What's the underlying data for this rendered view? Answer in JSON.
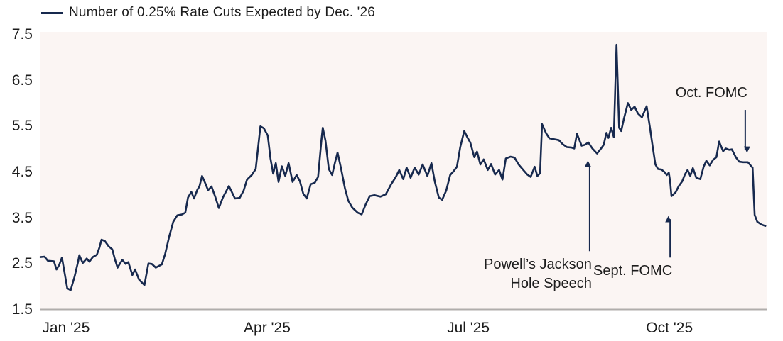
{
  "legend": {
    "label": "Number of 0.25% Rate Cuts Expected by Dec. '26"
  },
  "colors": {
    "line": "#17294e",
    "annotation_arrow": "#17294e",
    "plot_background": "#fbf5f3",
    "axis_line": "#b0adab",
    "text": "#1c1c1c"
  },
  "chart_data": {
    "type": "line",
    "title": "Number of 0.25% Rate Cuts Expected by Dec. '26",
    "xlabel": "",
    "ylabel": "",
    "grid": false,
    "legend_position": "top-left",
    "y_axis": {
      "range": [
        1.5,
        7.5
      ],
      "ticks": [
        7.5,
        6.5,
        5.5,
        4.5,
        3.5,
        2.5,
        1.5
      ],
      "tick_labels": [
        "7.5",
        "6.5",
        "5.5",
        "4.5",
        "3.5",
        "2.5",
        "1.5"
      ]
    },
    "x_axis": {
      "domain_months": [
        -0.38,
        10.46
      ],
      "tick_months": [
        0,
        3,
        6,
        9
      ],
      "tick_labels": [
        "Jan '25",
        "Apr '25",
        "Jul '25",
        "Oct '25"
      ]
    },
    "series": [
      {
        "name": "Number of 0.25% Rate Cuts Expected by Dec. '26",
        "points": [
          [
            -0.38,
            2.65
          ],
          [
            -0.32,
            2.66
          ],
          [
            -0.27,
            2.57
          ],
          [
            -0.18,
            2.56
          ],
          [
            -0.14,
            2.38
          ],
          [
            -0.1,
            2.48
          ],
          [
            -0.06,
            2.64
          ],
          [
            -0.02,
            2.3
          ],
          [
            0.02,
            1.97
          ],
          [
            0.07,
            1.93
          ],
          [
            0.13,
            2.23
          ],
          [
            0.18,
            2.54
          ],
          [
            0.2,
            2.69
          ],
          [
            0.25,
            2.52
          ],
          [
            0.31,
            2.62
          ],
          [
            0.35,
            2.55
          ],
          [
            0.4,
            2.65
          ],
          [
            0.46,
            2.7
          ],
          [
            0.5,
            2.86
          ],
          [
            0.53,
            3.03
          ],
          [
            0.58,
            3.0
          ],
          [
            0.64,
            2.88
          ],
          [
            0.69,
            2.82
          ],
          [
            0.73,
            2.6
          ],
          [
            0.77,
            2.42
          ],
          [
            0.84,
            2.59
          ],
          [
            0.89,
            2.5
          ],
          [
            0.93,
            2.54
          ],
          [
            0.99,
            2.26
          ],
          [
            1.03,
            2.38
          ],
          [
            1.09,
            2.16
          ],
          [
            1.17,
            2.04
          ],
          [
            1.23,
            2.51
          ],
          [
            1.28,
            2.5
          ],
          [
            1.34,
            2.42
          ],
          [
            1.39,
            2.46
          ],
          [
            1.43,
            2.49
          ],
          [
            1.48,
            2.72
          ],
          [
            1.54,
            3.1
          ],
          [
            1.6,
            3.42
          ],
          [
            1.66,
            3.56
          ],
          [
            1.73,
            3.58
          ],
          [
            1.78,
            3.62
          ],
          [
            1.82,
            3.95
          ],
          [
            1.87,
            4.07
          ],
          [
            1.91,
            3.93
          ],
          [
            1.96,
            4.12
          ],
          [
            1.99,
            4.19
          ],
          [
            2.03,
            4.42
          ],
          [
            2.08,
            4.25
          ],
          [
            2.12,
            4.11
          ],
          [
            2.17,
            4.19
          ],
          [
            2.23,
            3.95
          ],
          [
            2.28,
            3.72
          ],
          [
            2.34,
            3.95
          ],
          [
            2.43,
            4.2
          ],
          [
            2.48,
            4.05
          ],
          [
            2.52,
            3.93
          ],
          [
            2.59,
            3.94
          ],
          [
            2.65,
            4.1
          ],
          [
            2.7,
            4.34
          ],
          [
            2.77,
            4.44
          ],
          [
            2.83,
            4.57
          ],
          [
            2.87,
            5.1
          ],
          [
            2.9,
            5.5
          ],
          [
            2.95,
            5.46
          ],
          [
            3.01,
            5.3
          ],
          [
            3.05,
            4.8
          ],
          [
            3.09,
            4.47
          ],
          [
            3.13,
            4.7
          ],
          [
            3.17,
            4.29
          ],
          [
            3.22,
            4.63
          ],
          [
            3.27,
            4.42
          ],
          [
            3.32,
            4.7
          ],
          [
            3.38,
            4.29
          ],
          [
            3.44,
            4.44
          ],
          [
            3.49,
            4.3
          ],
          [
            3.54,
            4.03
          ],
          [
            3.59,
            3.93
          ],
          [
            3.65,
            4.24
          ],
          [
            3.71,
            4.27
          ],
          [
            3.76,
            4.4
          ],
          [
            3.81,
            5.2
          ],
          [
            3.83,
            5.47
          ],
          [
            3.87,
            5.19
          ],
          [
            3.92,
            4.57
          ],
          [
            3.97,
            4.44
          ],
          [
            4.01,
            4.7
          ],
          [
            4.05,
            4.93
          ],
          [
            4.1,
            4.6
          ],
          [
            4.16,
            4.15
          ],
          [
            4.21,
            3.88
          ],
          [
            4.27,
            3.73
          ],
          [
            4.35,
            3.62
          ],
          [
            4.41,
            3.58
          ],
          [
            4.47,
            3.8
          ],
          [
            4.53,
            3.98
          ],
          [
            4.6,
            4.0
          ],
          [
            4.69,
            3.97
          ],
          [
            4.77,
            4.02
          ],
          [
            4.85,
            4.24
          ],
          [
            4.92,
            4.4
          ],
          [
            4.97,
            4.55
          ],
          [
            5.03,
            4.35
          ],
          [
            5.08,
            4.6
          ],
          [
            5.14,
            4.38
          ],
          [
            5.2,
            4.6
          ],
          [
            5.26,
            4.45
          ],
          [
            5.32,
            4.67
          ],
          [
            5.39,
            4.42
          ],
          [
            5.45,
            4.7
          ],
          [
            5.5,
            4.3
          ],
          [
            5.56,
            3.95
          ],
          [
            5.61,
            3.9
          ],
          [
            5.67,
            4.1
          ],
          [
            5.73,
            4.44
          ],
          [
            5.78,
            4.52
          ],
          [
            5.83,
            4.62
          ],
          [
            5.88,
            5.05
          ],
          [
            5.94,
            5.4
          ],
          [
            5.99,
            5.25
          ],
          [
            6.03,
            5.15
          ],
          [
            6.09,
            4.83
          ],
          [
            6.13,
            4.95
          ],
          [
            6.18,
            4.67
          ],
          [
            6.23,
            4.78
          ],
          [
            6.29,
            4.55
          ],
          [
            6.34,
            4.68
          ],
          [
            6.4,
            4.45
          ],
          [
            6.46,
            4.55
          ],
          [
            6.51,
            4.34
          ],
          [
            6.56,
            4.8
          ],
          [
            6.63,
            4.84
          ],
          [
            6.69,
            4.82
          ],
          [
            6.75,
            4.67
          ],
          [
            6.82,
            4.55
          ],
          [
            6.88,
            4.45
          ],
          [
            6.93,
            4.4
          ],
          [
            6.99,
            4.62
          ],
          [
            7.03,
            4.42
          ],
          [
            7.07,
            4.48
          ],
          [
            7.1,
            5.55
          ],
          [
            7.16,
            5.35
          ],
          [
            7.21,
            5.24
          ],
          [
            7.28,
            5.22
          ],
          [
            7.35,
            5.2
          ],
          [
            7.41,
            5.11
          ],
          [
            7.47,
            5.05
          ],
          [
            7.54,
            5.04
          ],
          [
            7.58,
            5.02
          ],
          [
            7.62,
            5.34
          ],
          [
            7.69,
            5.08
          ],
          [
            7.74,
            5.1
          ],
          [
            7.79,
            5.15
          ],
          [
            7.85,
            5.02
          ],
          [
            7.92,
            4.91
          ],
          [
            7.97,
            5.0
          ],
          [
            8.02,
            5.1
          ],
          [
            8.06,
            5.36
          ],
          [
            8.09,
            5.25
          ],
          [
            8.13,
            5.47
          ],
          [
            8.17,
            5.27
          ],
          [
            8.21,
            7.28
          ],
          [
            8.25,
            5.47
          ],
          [
            8.28,
            5.4
          ],
          [
            8.32,
            5.66
          ],
          [
            8.38,
            6.01
          ],
          [
            8.43,
            5.86
          ],
          [
            8.48,
            5.93
          ],
          [
            8.53,
            5.78
          ],
          [
            8.59,
            5.7
          ],
          [
            8.66,
            5.94
          ],
          [
            8.71,
            5.47
          ],
          [
            8.75,
            5.06
          ],
          [
            8.79,
            4.67
          ],
          [
            8.83,
            4.57
          ],
          [
            8.88,
            4.56
          ],
          [
            8.93,
            4.5
          ],
          [
            8.96,
            4.44
          ],
          [
            8.99,
            4.49
          ],
          [
            9.01,
            4.3
          ],
          [
            9.03,
            3.98
          ],
          [
            9.09,
            4.06
          ],
          [
            9.14,
            4.2
          ],
          [
            9.19,
            4.3
          ],
          [
            9.23,
            4.45
          ],
          [
            9.27,
            4.55
          ],
          [
            9.31,
            4.42
          ],
          [
            9.35,
            4.59
          ],
          [
            9.4,
            4.38
          ],
          [
            9.46,
            4.35
          ],
          [
            9.51,
            4.62
          ],
          [
            9.55,
            4.75
          ],
          [
            9.6,
            4.65
          ],
          [
            9.65,
            4.77
          ],
          [
            9.7,
            4.83
          ],
          [
            9.74,
            5.17
          ],
          [
            9.8,
            4.96
          ],
          [
            9.84,
            5.02
          ],
          [
            9.89,
            4.99
          ],
          [
            9.93,
            5.0
          ],
          [
            9.99,
            4.83
          ],
          [
            10.04,
            4.73
          ],
          [
            10.1,
            4.72
          ],
          [
            10.17,
            4.72
          ],
          [
            10.21,
            4.65
          ],
          [
            10.24,
            4.6
          ],
          [
            10.27,
            3.57
          ],
          [
            10.31,
            3.42
          ],
          [
            10.37,
            3.36
          ],
          [
            10.43,
            3.33
          ]
        ]
      }
    ],
    "annotations": [
      {
        "label_lines": [
          "Powell’s Jackson",
          "Hole Speech"
        ],
        "arrow": {
          "month": 7.81,
          "from_value": 2.78,
          "to_value": 4.78,
          "direction": "up"
        },
        "note": ""
      },
      {
        "label_lines": [
          "Sept. FOMC"
        ],
        "arrow": {
          "month": 9.01,
          "from_value": 2.64,
          "to_value": 3.57,
          "direction": "up"
        },
        "note": ""
      },
      {
        "label_lines": [
          "Oct. FOMC"
        ],
        "arrow": {
          "month": 10.13,
          "from_value": 5.86,
          "to_value": 4.9,
          "direction": "down"
        },
        "note": ""
      }
    ]
  }
}
